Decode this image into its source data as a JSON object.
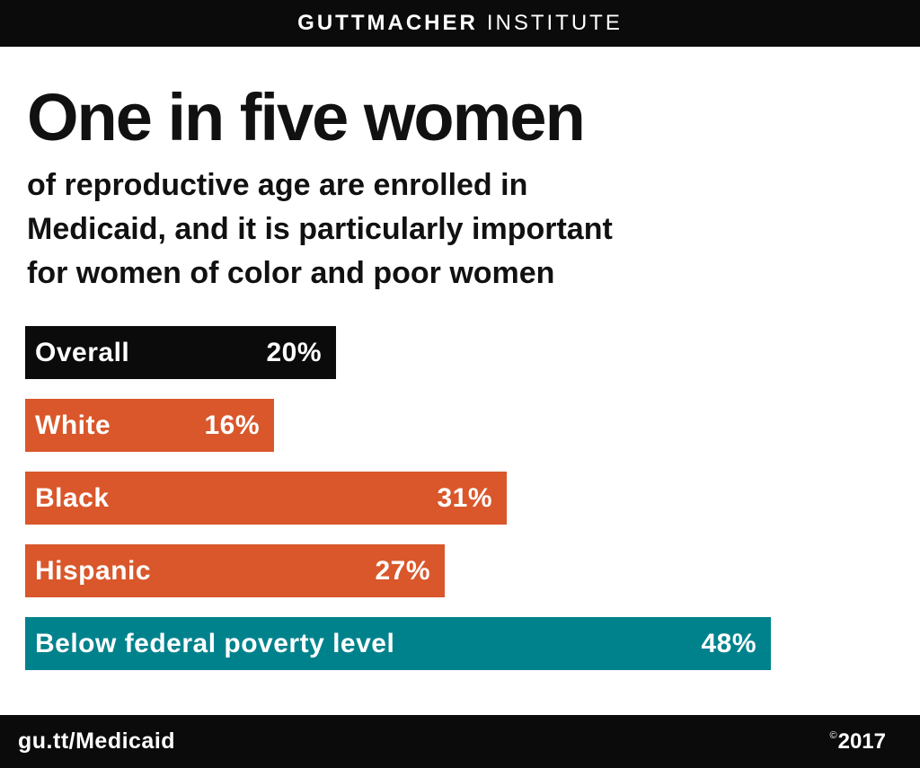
{
  "header": {
    "brand_bold": "GUTTMACHER",
    "brand_regular": "INSTITUTE"
  },
  "title": "One in five women",
  "subtitle_lines": [
    "of reproductive age are enrolled in",
    "Medicaid, and it is particularly important",
    "for women of color and poor women"
  ],
  "colors": {
    "black": "#0b0b0b",
    "orange": "#d9572b",
    "teal": "#00828c",
    "background": "#ffffff"
  },
  "chart_data": {
    "type": "bar",
    "orientation": "horizontal",
    "title": "One in five women of reproductive age are enrolled in Medicaid, and it is particularly important for women of color and poor women",
    "categories": [
      "Overall",
      "White",
      "Black",
      "Hispanic",
      "Below federal poverty level"
    ],
    "values": [
      20,
      16,
      31,
      27,
      48
    ],
    "unit": "%",
    "xlim": [
      0,
      50
    ],
    "grid": false,
    "legend": false,
    "value_labels_inside_bars": true,
    "rows": [
      {
        "label": "Overall",
        "value": 20,
        "value_label": "20%",
        "color": "#0b0b0b"
      },
      {
        "label": "White",
        "value": 16,
        "value_label": "16%",
        "color": "#d9572b"
      },
      {
        "label": "Black",
        "value": 31,
        "value_label": "31%",
        "color": "#d9572b"
      },
      {
        "label": "Hispanic",
        "value": 27,
        "value_label": "27%",
        "color": "#d9572b"
      },
      {
        "label": "Below federal poverty level",
        "value": 48,
        "value_label": "48%",
        "color": "#00828c"
      }
    ]
  },
  "footer": {
    "url": "gu.tt/Medicaid",
    "copyright_symbol": "©",
    "year": "2017"
  }
}
